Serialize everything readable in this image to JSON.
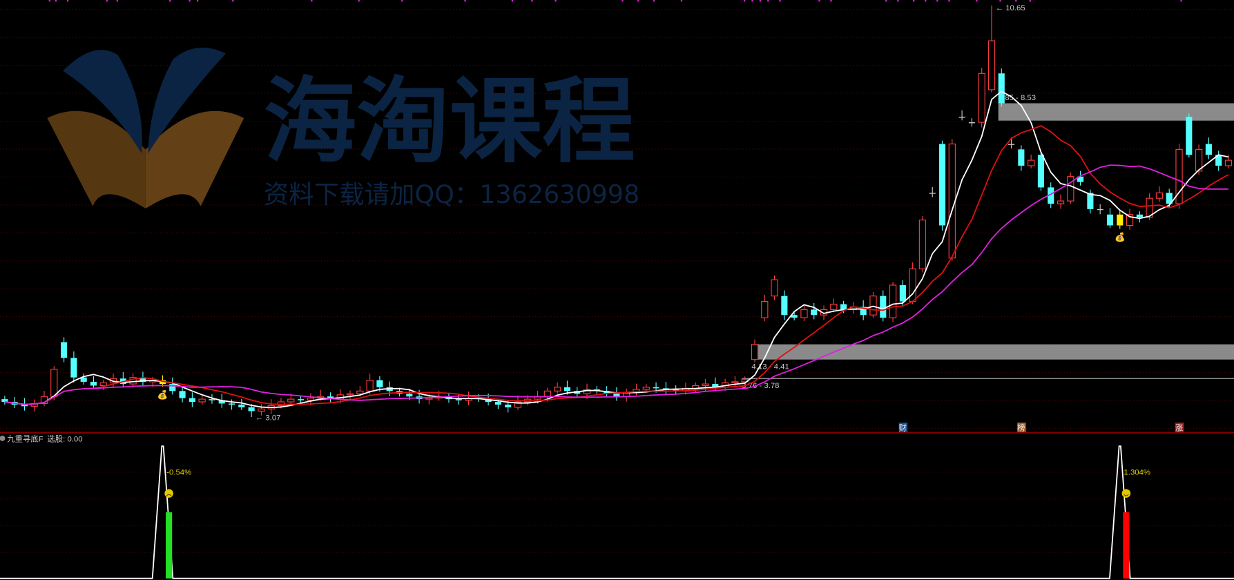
{
  "watermark": {
    "title": "海淘课程",
    "subtitle": "资料下载请加QQ：1362630998"
  },
  "indicator": {
    "name": "九重寻底F",
    "select_label": "选股: 0.00",
    "signals": [
      {
        "index": 16,
        "value": 1,
        "bar_value": 0.5,
        "bar_color": "#22e022",
        "label": "-0.54%",
        "face": "sad-face"
      },
      {
        "index": 113,
        "value": 1,
        "bar_value": 0.5,
        "bar_color": "#ff0000",
        "label": "1.304%",
        "face": "smile-face"
      }
    ]
  },
  "markers": [
    {
      "index": 91,
      "text": "财",
      "color": "#1f4f8a"
    },
    {
      "index": 103,
      "text": "榜",
      "color": "#a0602a"
    },
    {
      "index": 119,
      "text": "涨",
      "color": "#a02020"
    }
  ],
  "colors": {
    "up": "#ff3b3b",
    "down": "#54ffff",
    "highlight": "#ffee00",
    "ma5": "#ffffff",
    "ma10": "#e01010",
    "ma20": "#e020e0",
    "grid": "#5a0000",
    "band": "#8a8a8a"
  },
  "chart_data": {
    "type": "candlestick",
    "open": [
      3.4,
      3.35,
      3.3,
      3.27,
      3.32,
      3.45,
      4.45,
      4.16,
      3.8,
      3.72,
      3.65,
      3.7,
      3.78,
      3.68,
      3.8,
      3.72,
      3.75,
      3.68,
      3.55,
      3.42,
      3.35,
      3.4,
      3.38,
      3.32,
      3.3,
      3.25,
      3.18,
      3.22,
      3.28,
      3.35,
      3.4,
      3.38,
      3.42,
      3.45,
      3.4,
      3.48,
      3.5,
      3.55,
      3.75,
      3.62,
      3.55,
      3.5,
      3.45,
      3.4,
      3.42,
      3.45,
      3.4,
      3.38,
      3.42,
      3.4,
      3.35,
      3.3,
      3.25,
      3.35,
      3.4,
      3.45,
      3.55,
      3.62,
      3.55,
      3.5,
      3.58,
      3.55,
      3.5,
      3.45,
      3.52,
      3.58,
      3.62,
      3.6,
      3.58,
      3.55,
      3.6,
      3.65,
      3.68,
      3.62,
      3.7,
      3.72,
      4.13,
      4.9,
      5.3,
      5.3,
      4.95,
      4.9,
      5.05,
      4.95,
      5.05,
      5.15,
      5.05,
      5.1,
      4.95,
      5.3,
      4.9,
      5.5,
      5.2,
      5.8,
      7.2,
      8.1,
      6.0,
      8.6,
      8.5,
      8.5,
      9.1,
      9.4,
      8.1,
      8.0,
      7.7,
      7.9,
      7.3,
      7.0,
      7.05,
      7.5,
      7.2,
      6.9,
      6.8,
      6.8,
      6.6,
      6.8,
      6.75,
      7.1,
      7.2,
      7.0,
      8.6,
      7.6,
      8.1,
      7.9,
      7.7
    ],
    "close": [
      3.35,
      3.3,
      3.27,
      3.32,
      3.45,
      3.95,
      4.16,
      3.8,
      3.72,
      3.65,
      3.7,
      3.78,
      3.68,
      3.8,
      3.72,
      3.75,
      3.68,
      3.55,
      3.42,
      3.35,
      3.4,
      3.38,
      3.32,
      3.3,
      3.25,
      3.18,
      3.22,
      3.28,
      3.35,
      3.4,
      3.38,
      3.42,
      3.45,
      3.4,
      3.48,
      3.5,
      3.55,
      3.75,
      3.62,
      3.55,
      3.5,
      3.45,
      3.4,
      3.42,
      3.45,
      3.4,
      3.38,
      3.42,
      3.4,
      3.35,
      3.3,
      3.25,
      3.35,
      3.4,
      3.45,
      3.55,
      3.62,
      3.55,
      3.5,
      3.58,
      3.55,
      3.5,
      3.45,
      3.52,
      3.58,
      3.62,
      3.6,
      3.58,
      3.55,
      3.6,
      3.65,
      3.68,
      3.62,
      3.7,
      3.72,
      3.76,
      4.41,
      5.2,
      5.6,
      4.95,
      4.9,
      5.05,
      4.95,
      5.05,
      5.15,
      5.05,
      5.1,
      4.95,
      5.3,
      4.9,
      5.5,
      5.2,
      5.8,
      6.7,
      7.2,
      6.6,
      8.1,
      8.6,
      8.5,
      9.4,
      10.0,
      8.85,
      8.1,
      7.7,
      7.8,
      7.3,
      7.0,
      7.05,
      7.5,
      7.4,
      6.9,
      6.9,
      6.6,
      6.6,
      6.8,
      6.75,
      7.1,
      7.2,
      7.0,
      8.0,
      7.9,
      8.0,
      7.9,
      7.7,
      7.8
    ],
    "highlight_bars": [
      16,
      113
    ],
    "moving_averages": [
      5,
      10,
      20
    ],
    "annotations": [
      {
        "index": 100,
        "price": 10.65,
        "label": "10.65",
        "kind": "high"
      },
      {
        "index": 25,
        "price": 3.07,
        "label": "3.07",
        "kind": "low"
      }
    ],
    "bands": [
      {
        "from_index": 101,
        "low": 8.53,
        "high": 8.85,
        "label": "8.85 - 8.53"
      },
      {
        "from_index": 76,
        "low": 4.13,
        "high": 4.41,
        "label": "4.13 - 4.41"
      },
      {
        "from_index": 75,
        "low": 3.76,
        "high": 3.78,
        "label": "3.76 - 3.78"
      }
    ],
    "grid": true
  }
}
